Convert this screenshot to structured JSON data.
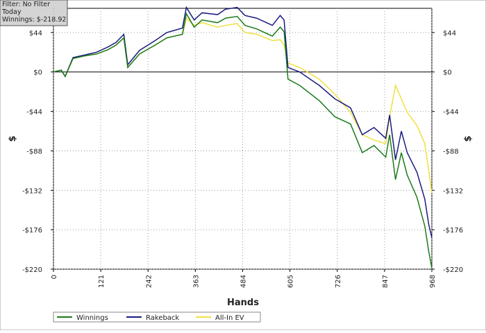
{
  "chart_data": {
    "type": "line",
    "info": [
      "Filter: No Filter",
      "Today",
      "Winnings: $-218.92"
    ],
    "x_label": "Hands",
    "y_label": "$",
    "x": [
      0,
      20,
      30,
      50,
      80,
      110,
      140,
      160,
      180,
      190,
      220,
      260,
      290,
      330,
      340,
      360,
      380,
      420,
      440,
      470,
      490,
      520,
      560,
      580,
      590,
      600,
      630,
      680,
      720,
      760,
      790,
      820,
      850,
      860,
      875,
      890,
      905,
      930,
      950,
      960,
      968
    ],
    "series": [
      {
        "name": "Winnings",
        "color": "#1a7a1a",
        "values": [
          0,
          2,
          -5,
          15,
          18,
          20,
          25,
          30,
          38,
          5,
          20,
          30,
          38,
          42,
          65,
          50,
          58,
          55,
          60,
          62,
          52,
          48,
          40,
          50,
          45,
          -8,
          -15,
          -32,
          -50,
          -58,
          -90,
          -82,
          -95,
          -70,
          -120,
          -90,
          -115,
          -140,
          -172,
          -200,
          -219
        ]
      },
      {
        "name": "Rakeback",
        "color": "#1a1a80",
        "values": [
          0,
          2,
          -5,
          16,
          19,
          22,
          28,
          33,
          42,
          8,
          24,
          35,
          44,
          49,
          72,
          58,
          66,
          64,
          70,
          72,
          63,
          60,
          52,
          63,
          58,
          5,
          0,
          -15,
          -30,
          -40,
          -70,
          -62,
          -74,
          -48,
          -98,
          -66,
          -90,
          -112,
          -142,
          -170,
          -185
        ]
      },
      {
        "name": "All-In EV",
        "color": "#f0e040",
        "values": [
          0,
          2,
          -5,
          15,
          18,
          20,
          25,
          30,
          38,
          5,
          20,
          30,
          38,
          42,
          60,
          52,
          55,
          50,
          52,
          54,
          44,
          42,
          35,
          36,
          30,
          10,
          5,
          -8,
          -25,
          -45,
          -70,
          -76,
          -80,
          -50,
          -15,
          -30,
          -45,
          -60,
          -80,
          -110,
          -135
        ]
      }
    ],
    "xlim": [
      0,
      968
    ],
    "xticks": [
      0,
      121,
      242,
      363,
      484,
      605,
      726,
      847,
      968
    ],
    "ylim": [
      -220,
      71
    ],
    "yticks": [
      {
        "value": 44,
        "label": "$44"
      },
      {
        "value": 0,
        "label": "$0"
      },
      {
        "value": -44,
        "label": "-$44"
      },
      {
        "value": -88,
        "label": "-$88"
      },
      {
        "value": -132,
        "label": "-$132"
      },
      {
        "value": -176,
        "label": "-$176"
      },
      {
        "value": -220,
        "label": "-$220"
      }
    ],
    "grid": true
  }
}
